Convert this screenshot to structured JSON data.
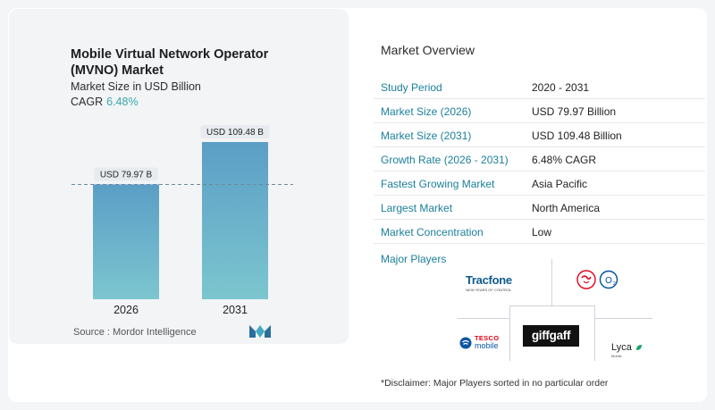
{
  "chart": {
    "title": "Mobile Virtual Network Operator (MVNO) Market",
    "subtitle": "Market Size in USD Billion",
    "cagr_label": "CAGR",
    "cagr_value": "6.48%",
    "source": "Source :  Mordor Intelligence"
  },
  "chart_data": {
    "type": "bar",
    "categories": [
      "2026",
      "2031"
    ],
    "values": [
      79.97,
      109.48
    ],
    "data_labels": [
      "USD 79.97 B",
      "USD 109.48 B"
    ],
    "title": "Mobile Virtual Network Operator (MVNO) Market",
    "subtitle": "Market Size in USD Billion",
    "reference_line": 79.97,
    "colors": {
      "bar_top": "#5b9ec6",
      "bar_bottom": "#7cc6cf",
      "ref_line": "#6c8aa0"
    }
  },
  "overview": {
    "title": "Market Overview",
    "rows": [
      {
        "label": "Study Period",
        "value": "2020 - 2031"
      },
      {
        "label": "Market Size (2026)",
        "value": "USD 79.97 Billion"
      },
      {
        "label": "Market Size (2031)",
        "value": "USD 109.48 Billion"
      },
      {
        "label": "Growth Rate (2026 - 2031)",
        "value": "6.48% CAGR"
      },
      {
        "label": "Fastest Growing Market",
        "value": "Asia Pacific"
      },
      {
        "label": "Largest Market",
        "value": "North America"
      },
      {
        "label": "Market Concentration",
        "value": "Low"
      }
    ]
  },
  "players": {
    "title": "Major Players",
    "logos": {
      "tracfone": "Tracfone",
      "tracfone_tagline": "NEW YEARS OF CONTROL",
      "virgin": "Virgin",
      "o2": "O2",
      "tesco": "TESCO",
      "tesco_sub": "mobile",
      "giffgaff": "giffgaff",
      "lyca": "Lyca",
      "lyca_sub": "Mobile"
    }
  },
  "disclaimer": "*Disclaimer: Major Players sorted in no particular order"
}
